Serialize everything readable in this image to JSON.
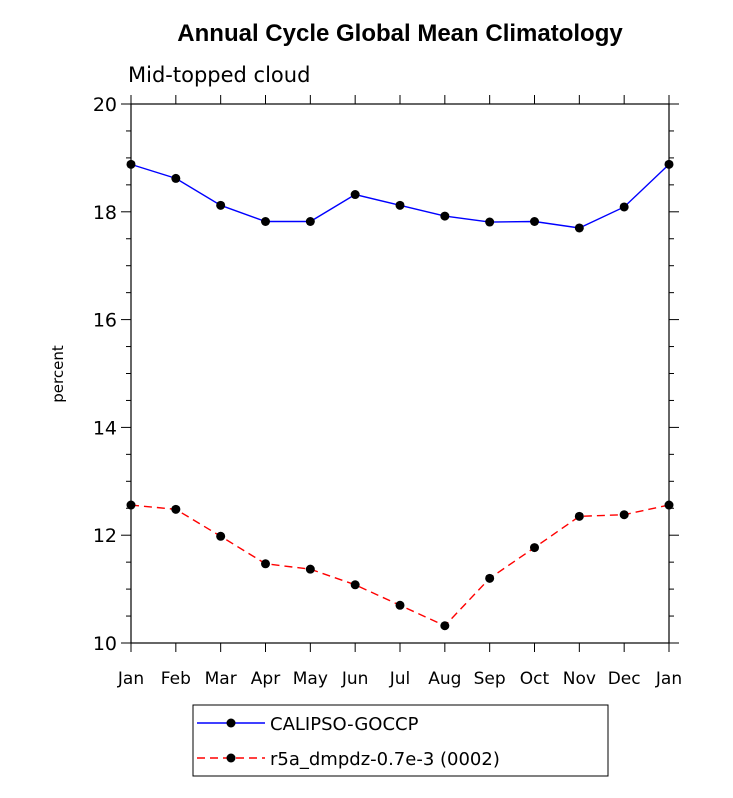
{
  "chart_data": {
    "type": "line",
    "title": "Annual Cycle Global Mean Climatology",
    "subtitle": "Mid-topped cloud",
    "xlabel": "",
    "ylabel": "percent",
    "categories": [
      "Jan",
      "Feb",
      "Mar",
      "Apr",
      "May",
      "Jun",
      "Jul",
      "Aug",
      "Sep",
      "Oct",
      "Nov",
      "Dec",
      "Jan"
    ],
    "ylim": [
      10,
      20
    ],
    "yticks": [
      "10",
      "12",
      "14",
      "16",
      "18",
      "20"
    ],
    "series": [
      {
        "name": "CALIPSO-GOCCP",
        "color": "#0000ff",
        "dash": "solid",
        "values": [
          18.88,
          18.62,
          18.12,
          17.82,
          17.82,
          18.32,
          18.12,
          17.92,
          17.81,
          17.82,
          17.7,
          18.09,
          18.88
        ]
      },
      {
        "name": "r5a_dmpdz-0.7e-3 (0002)",
        "color": "#ff0000",
        "dash": "dashed",
        "values": [
          12.56,
          12.48,
          11.98,
          11.47,
          11.37,
          11.08,
          10.7,
          10.32,
          11.2,
          11.77,
          12.35,
          12.38,
          12.56
        ]
      }
    ]
  }
}
